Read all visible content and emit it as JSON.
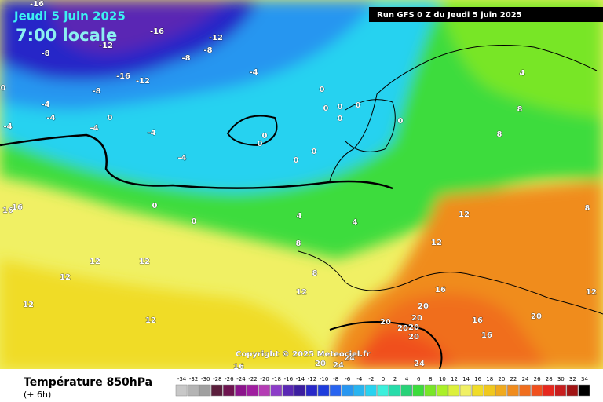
{
  "header": {
    "date": "Jeudi 5 juin 2025",
    "time": "7:00 locale",
    "run": "Run GFS 0 Z du Jeudi 5 juin 2025"
  },
  "copyright": "Copyright © 2025 Meteociel.fr",
  "footer": {
    "title": "Température 850hPa",
    "lead": "(+ 6h)"
  },
  "map": {
    "contour_labels": [
      -16,
      -16,
      -12,
      -12,
      -8,
      -8,
      -8,
      -16,
      -12,
      -4,
      -8,
      0,
      -4,
      -4,
      -4,
      0,
      -4,
      -4,
      -4,
      0,
      0,
      0,
      0,
      0,
      0,
      0,
      0,
      0,
      0,
      4,
      8,
      8,
      0,
      0,
      4,
      4,
      8,
      12,
      12,
      8,
      16,
      16,
      12,
      12,
      12,
      12,
      12,
      8,
      16,
      20,
      12,
      20,
      20,
      20,
      20,
      20,
      16,
      16,
      20,
      12,
      20,
      24,
      24,
      24,
      16
    ]
  },
  "legend": {
    "values": [
      -34,
      -32,
      -30,
      -28,
      -26,
      -24,
      -22,
      -20,
      -18,
      -16,
      -14,
      -12,
      -10,
      -8,
      -6,
      -4,
      -2,
      0,
      2,
      4,
      6,
      8,
      10,
      12,
      14,
      16,
      18,
      20,
      22,
      24,
      26,
      28,
      30,
      32,
      34
    ],
    "colors": [
      "#c8c8c8",
      "#b4b4b4",
      "#a0a0a0",
      "#5a1e3c",
      "#6e1450",
      "#8c148c",
      "#a01ea0",
      "#b43cb4",
      "#8c3cc8",
      "#5a28b4",
      "#3c1ea0",
      "#2828c8",
      "#1e3cdc",
      "#2864f0",
      "#2896f0",
      "#28b4f0",
      "#28d2f0",
      "#3cf0dc",
      "#28dcaa",
      "#28d278",
      "#3cdc3c",
      "#78e628",
      "#aaf028",
      "#dcf03c",
      "#f0f064",
      "#f0dc28",
      "#f0c81e",
      "#f0aa1e",
      "#f08c1e",
      "#f06e1e",
      "#f0501e",
      "#e6281e",
      "#c81e1e",
      "#a01414",
      "#000000"
    ]
  }
}
